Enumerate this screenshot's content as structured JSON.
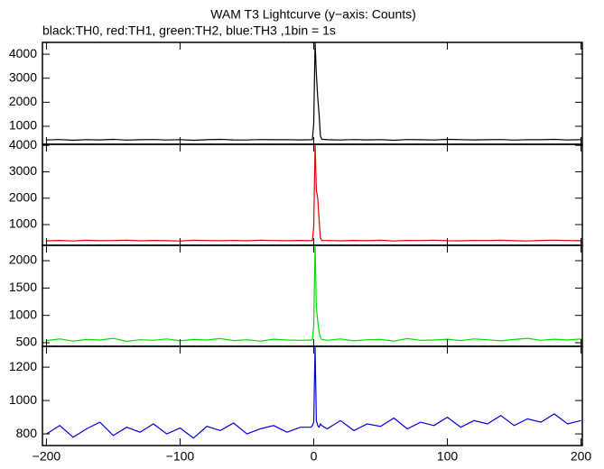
{
  "chart_data": [
    {
      "type": "line",
      "title": "WAM T3 Lightcurve (y−axis: Counts)",
      "subtitle": "black:TH0, red:TH1, green:TH2, blue:TH3 ,1bin = 1s",
      "x": [
        -200,
        -190,
        -180,
        -170,
        -160,
        -150,
        -140,
        -130,
        -120,
        -110,
        -100,
        -90,
        -80,
        -70,
        -60,
        -50,
        -40,
        -30,
        -20,
        -10,
        -2,
        -1,
        0,
        1,
        2,
        3,
        4,
        5,
        6,
        10,
        20,
        30,
        40,
        50,
        60,
        70,
        80,
        90,
        100,
        110,
        120,
        130,
        140,
        150,
        160,
        170,
        180,
        190,
        200
      ],
      "series": [
        {
          "name": "TH0",
          "color": "#000000",
          "values": [
            430,
            450,
            420,
            445,
            435,
            455,
            425,
            440,
            450,
            430,
            445,
            420,
            440,
            455,
            435,
            430,
            450,
            440,
            445,
            435,
            440,
            450,
            1100,
            4490,
            3200,
            2200,
            1500,
            600,
            460,
            440,
            430,
            450,
            435,
            445,
            420,
            450,
            440,
            430,
            455,
            445,
            435,
            440,
            450,
            425,
            445,
            440,
            455,
            430,
            445
          ]
        }
      ],
      "xlim": [
        -203,
        201
      ],
      "ylim": [
        250,
        4490
      ],
      "yticks": [
        1000,
        2000,
        3000,
        4000
      ]
    },
    {
      "type": "line",
      "x": [
        -200,
        -190,
        -180,
        -170,
        -160,
        -150,
        -140,
        -130,
        -120,
        -110,
        -100,
        -90,
        -80,
        -70,
        -60,
        -50,
        -40,
        -30,
        -20,
        -10,
        -2,
        -1,
        0,
        1,
        2,
        3,
        4,
        5,
        6,
        10,
        20,
        30,
        40,
        50,
        60,
        70,
        80,
        90,
        100,
        110,
        120,
        130,
        140,
        150,
        160,
        170,
        180,
        190,
        200
      ],
      "series": [
        {
          "name": "TH1",
          "color": "#e00000",
          "values": [
            385,
            400,
            380,
            405,
            390,
            395,
            410,
            385,
            400,
            390,
            380,
            405,
            395,
            390,
            400,
            385,
            410,
            395,
            390,
            400,
            390,
            400,
            900,
            4040,
            2300,
            2000,
            1200,
            500,
            400,
            395,
            385,
            400,
            390,
            405,
            380,
            400,
            395,
            410,
            390,
            385,
            400,
            395,
            405,
            390,
            380,
            400,
            410,
            395,
            390
          ]
        }
      ],
      "xlim": [
        -203,
        201
      ],
      "ylim": [
        215,
        4040
      ],
      "yticks": [
        1000,
        2000,
        3000,
        4000
      ]
    },
    {
      "type": "line",
      "x": [
        -200,
        -190,
        -180,
        -170,
        -160,
        -150,
        -140,
        -130,
        -120,
        -110,
        -100,
        -90,
        -80,
        -70,
        -60,
        -50,
        -40,
        -30,
        -20,
        -10,
        -2,
        -1,
        0,
        1,
        2,
        3,
        4,
        5,
        6,
        10,
        20,
        30,
        40,
        50,
        60,
        70,
        80,
        90,
        100,
        110,
        120,
        130,
        140,
        150,
        160,
        170,
        180,
        190,
        200
      ],
      "series": [
        {
          "name": "TH2",
          "color": "#00dd00",
          "values": [
            540,
            570,
            530,
            560,
            550,
            580,
            525,
            555,
            545,
            570,
            535,
            560,
            550,
            575,
            540,
            555,
            530,
            565,
            550,
            545,
            550,
            560,
            800,
            2280,
            1150,
            900,
            700,
            600,
            560,
            545,
            570,
            535,
            555,
            560,
            530,
            575,
            545,
            550,
            565,
            540,
            570,
            555,
            535,
            560,
            580,
            545,
            565,
            550,
            570
          ]
        }
      ],
      "xlim": [
        -203,
        201
      ],
      "ylim": [
        434,
        2281
      ],
      "yticks": [
        500,
        1000,
        1500,
        2000
      ]
    },
    {
      "type": "line",
      "x": [
        -200,
        -190,
        -180,
        -170,
        -160,
        -150,
        -140,
        -130,
        -120,
        -110,
        -100,
        -90,
        -80,
        -70,
        -60,
        -50,
        -40,
        -30,
        -20,
        -10,
        -2,
        -1,
        0,
        1,
        2,
        3,
        4,
        5,
        6,
        10,
        20,
        30,
        40,
        50,
        60,
        70,
        80,
        90,
        100,
        110,
        120,
        130,
        140,
        150,
        160,
        170,
        180,
        190,
        200
      ],
      "series": [
        {
          "name": "TH3",
          "color": "#0000dd",
          "values": [
            800,
            850,
            780,
            830,
            870,
            790,
            840,
            810,
            860,
            800,
            835,
            775,
            845,
            820,
            865,
            800,
            830,
            850,
            810,
            840,
            840,
            850,
            870,
            1325,
            880,
            850,
            840,
            860,
            850,
            830,
            880,
            820,
            860,
            845,
            895,
            830,
            870,
            850,
            900,
            840,
            880,
            860,
            910,
            850,
            890,
            870,
            920,
            860,
            880
          ]
        }
      ],
      "xlim": [
        -203,
        201
      ],
      "ylim": [
        730,
        1325
      ],
      "yticks": [
        800,
        1000,
        1200
      ],
      "xticks": [
        {
          "value": -200,
          "label": "−200"
        },
        {
          "value": -100,
          "label": "−100"
        },
        0,
        100,
        200
      ]
    }
  ]
}
